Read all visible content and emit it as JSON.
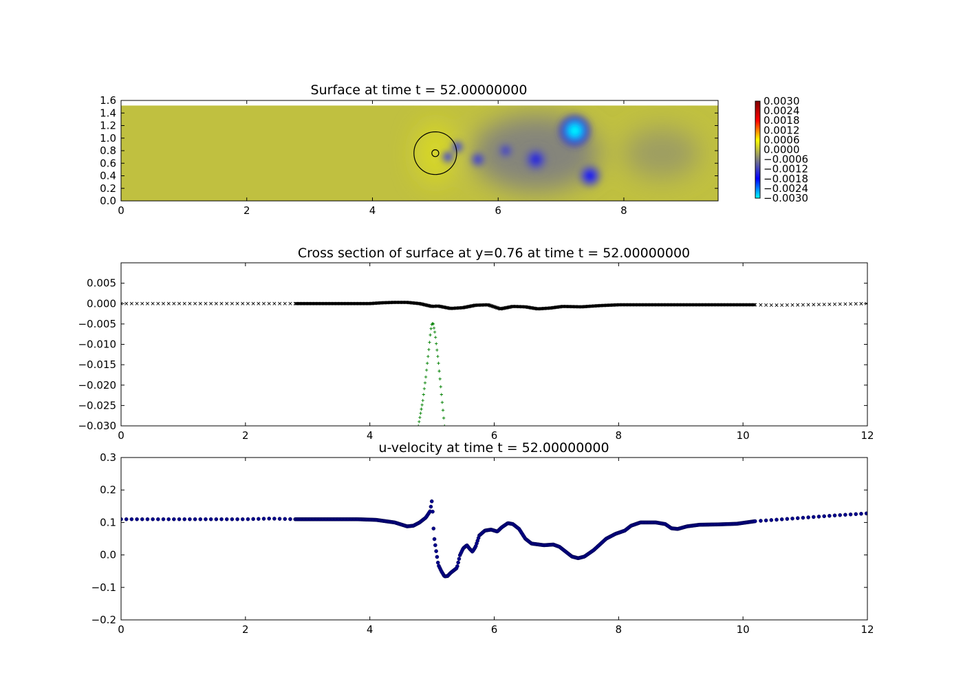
{
  "chart_data": [
    {
      "type": "heatmap",
      "title": "Surface at time t =    52.00000000",
      "xlim": [
        0,
        9.5
      ],
      "ylim": [
        0,
        1.6
      ],
      "xticks": [
        "0",
        "2",
        "4",
        "6",
        "8"
      ],
      "yticks": [
        "0.0",
        "0.2",
        "0.4",
        "0.6",
        "0.8",
        "1.0",
        "1.2",
        "1.4",
        "1.6"
      ],
      "domain_y_max": 1.52,
      "background_value": 0.0,
      "colorbar": {
        "range": [
          -0.003,
          0.003
        ],
        "ticks": [
          "0.0030",
          "0.0024",
          "0.0018",
          "0.0012",
          "0.0006",
          "0.0000",
          "−0.0006",
          "−0.0012",
          "−0.0018",
          "−0.0024",
          "−0.0030"
        ],
        "colors": [
          "#00ffff",
          "#0000ff",
          "#808080",
          "#ffff00",
          "#ff0000",
          "#800000"
        ]
      },
      "field": {
        "base_tint": [
          {
            "x": 5.0,
            "y": 0.76,
            "sx": 0.3,
            "sy": 0.5,
            "value": 0.0003
          },
          {
            "x": 6.6,
            "y": 0.76,
            "sx": 1.0,
            "sy": 0.6,
            "value": -0.0007
          },
          {
            "x": 8.6,
            "y": 0.76,
            "sx": 0.6,
            "sy": 0.4,
            "value": -0.0004
          }
        ],
        "blobs": [
          {
            "x": 7.22,
            "y": 1.12,
            "r": 0.2,
            "value": -0.003
          },
          {
            "x": 7.46,
            "y": 0.4,
            "r": 0.14,
            "value": -0.0018
          },
          {
            "x": 6.6,
            "y": 0.66,
            "r": 0.16,
            "value": -0.0015
          },
          {
            "x": 6.12,
            "y": 0.8,
            "r": 0.1,
            "value": -0.0014
          },
          {
            "x": 5.68,
            "y": 0.66,
            "r": 0.09,
            "value": -0.0016
          },
          {
            "x": 5.2,
            "y": 0.7,
            "r": 0.07,
            "value": -0.002
          },
          {
            "x": 5.35,
            "y": 0.86,
            "r": 0.07,
            "value": -0.0021
          }
        ]
      },
      "circles": [
        {
          "x": 5.0,
          "y": 0.76,
          "r": 0.34
        },
        {
          "x": 5.0,
          "y": 0.76,
          "r": 0.055
        }
      ]
    },
    {
      "type": "scatter",
      "title": "Cross section of surface at y=0.76 at time t =    52.00000000",
      "xlim": [
        0,
        12
      ],
      "ylim": [
        -0.03,
        0.01
      ],
      "xticks": [
        "0",
        "2",
        "4",
        "6",
        "8",
        "10",
        "12"
      ],
      "yticks": [
        "0.005",
        "0.000",
        "−0.005",
        "−0.010",
        "−0.015",
        "−0.020",
        "−0.025",
        "−0.030"
      ],
      "series": [
        {
          "marker": "x",
          "color": "#000000",
          "points": [
            [
              0,
              0
            ],
            [
              2.8,
              0
            ],
            [
              4.0,
              0
            ],
            [
              4.2,
              0.0002
            ],
            [
              4.4,
              0.0003
            ],
            [
              4.6,
              0.0003
            ],
            [
              4.8,
              0.0
            ],
            [
              5.0,
              -0.0007
            ],
            [
              5.1,
              -0.0006
            ],
            [
              5.3,
              -0.0012
            ],
            [
              5.5,
              -0.001
            ],
            [
              5.7,
              -0.0004
            ],
            [
              5.9,
              -0.0003
            ],
            [
              6.1,
              -0.0013
            ],
            [
              6.3,
              -0.0007
            ],
            [
              6.5,
              -0.0008
            ],
            [
              6.7,
              -0.0013
            ],
            [
              6.9,
              -0.0011
            ],
            [
              7.1,
              -0.0007
            ],
            [
              7.4,
              -0.0008
            ],
            [
              7.7,
              -0.0005
            ],
            [
              8.0,
              -0.0003
            ],
            [
              8.5,
              -0.0003
            ],
            [
              9.0,
              -0.0003
            ],
            [
              9.5,
              -0.0003
            ],
            [
              10.2,
              -0.0003
            ],
            [
              10.5,
              -0.0004
            ],
            [
              11.0,
              -0.0003
            ],
            [
              12.0,
              0
            ]
          ],
          "dense_range": [
            2.8,
            10.2
          ],
          "sparse_step": 0.085
        },
        {
          "marker": "+",
          "color": "#008000",
          "points": [
            [
              4.78,
              -0.03
            ],
            [
              4.85,
              -0.024
            ],
            [
              4.9,
              -0.018
            ],
            [
              4.95,
              -0.011
            ],
            [
              4.98,
              -0.0065
            ],
            [
              5.0,
              -0.0048
            ],
            [
              5.02,
              -0.005
            ],
            [
              5.05,
              -0.0075
            ],
            [
              5.1,
              -0.014
            ],
            [
              5.15,
              -0.022
            ],
            [
              5.2,
              -0.03
            ]
          ]
        }
      ]
    },
    {
      "type": "scatter",
      "title": "u-velocity at time t =    52.00000000",
      "xlim": [
        0,
        12
      ],
      "ylim": [
        -0.2,
        0.3
      ],
      "xticks": [
        "0",
        "2",
        "4",
        "6",
        "8",
        "10",
        "12"
      ],
      "yticks": [
        "0.3",
        "0.2",
        "0.1",
        "0.0",
        "−0.1",
        "−0.2"
      ],
      "series": [
        {
          "marker": "o",
          "color": "#00008b",
          "points": [
            [
              0,
              0.11
            ],
            [
              2.0,
              0.11
            ],
            [
              2.4,
              0.112
            ],
            [
              2.8,
              0.11
            ],
            [
              3.8,
              0.11
            ],
            [
              4.1,
              0.108
            ],
            [
              4.4,
              0.1
            ],
            [
              4.6,
              0.088
            ],
            [
              4.7,
              0.09
            ],
            [
              4.8,
              0.1
            ],
            [
              4.9,
              0.115
            ],
            [
              4.97,
              0.135
            ],
            [
              5.0,
              0.17
            ],
            [
              5.03,
              0.06
            ],
            [
              5.06,
              0.02
            ],
            [
              5.1,
              -0.03
            ],
            [
              5.15,
              -0.05
            ],
            [
              5.2,
              -0.066
            ],
            [
              5.25,
              -0.065
            ],
            [
              5.3,
              -0.055
            ],
            [
              5.4,
              -0.04
            ],
            [
              5.45,
              0.0
            ],
            [
              5.5,
              0.02
            ],
            [
              5.56,
              0.03
            ],
            [
              5.6,
              0.02
            ],
            [
              5.65,
              0.01
            ],
            [
              5.7,
              0.025
            ],
            [
              5.76,
              0.06
            ],
            [
              5.85,
              0.075
            ],
            [
              5.95,
              0.078
            ],
            [
              6.05,
              0.072
            ],
            [
              6.12,
              0.085
            ],
            [
              6.22,
              0.098
            ],
            [
              6.3,
              0.095
            ],
            [
              6.4,
              0.08
            ],
            [
              6.5,
              0.05
            ],
            [
              6.6,
              0.035
            ],
            [
              6.8,
              0.03
            ],
            [
              6.95,
              0.032
            ],
            [
              7.05,
              0.025
            ],
            [
              7.15,
              0.01
            ],
            [
              7.25,
              -0.005
            ],
            [
              7.35,
              -0.01
            ],
            [
              7.45,
              -0.005
            ],
            [
              7.6,
              0.015
            ],
            [
              7.8,
              0.05
            ],
            [
              7.95,
              0.065
            ],
            [
              8.1,
              0.075
            ],
            [
              8.2,
              0.09
            ],
            [
              8.35,
              0.1
            ],
            [
              8.6,
              0.1
            ],
            [
              8.75,
              0.095
            ],
            [
              8.85,
              0.082
            ],
            [
              8.95,
              0.08
            ],
            [
              9.1,
              0.088
            ],
            [
              9.3,
              0.093
            ],
            [
              9.6,
              0.094
            ],
            [
              9.9,
              0.096
            ],
            [
              10.2,
              0.104
            ],
            [
              10.5,
              0.108
            ],
            [
              11.0,
              0.115
            ],
            [
              11.5,
              0.122
            ],
            [
              12.0,
              0.128
            ]
          ],
          "dense_range": [
            2.8,
            10.2
          ],
          "sparse_step": 0.085
        }
      ]
    }
  ]
}
